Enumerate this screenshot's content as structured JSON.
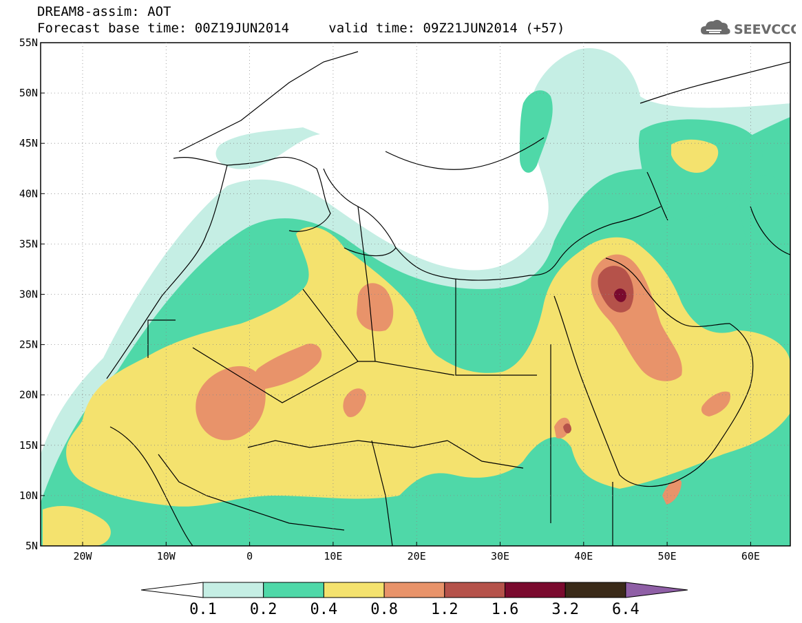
{
  "header": {
    "title_line1": "DREAM8-assim: AOT",
    "base_label": "Forecast base time: 00Z19JUN2014",
    "valid_label": "valid time: 09Z21JUN2014 (+57)"
  },
  "logo": {
    "text": "SEEVCCC",
    "icon": "cloud-icon"
  },
  "map": {
    "lat_labels": [
      "55N",
      "50N",
      "45N",
      "40N",
      "35N",
      "30N",
      "25N",
      "20N",
      "15N",
      "10N",
      "5N"
    ],
    "lon_labels": [
      "20W",
      "10W",
      "0",
      "10E",
      "20E",
      "30E",
      "40E",
      "50E",
      "60E"
    ]
  },
  "colorbar": {
    "levels": [
      "0.1",
      "0.2",
      "0.4",
      "0.8",
      "1.2",
      "1.6",
      "3.2",
      "6.4"
    ],
    "colors": [
      "#ffffff",
      "#c5eee4",
      "#4fd8a8",
      "#f4e26e",
      "#e8936a",
      "#b5524a",
      "#7a0a2e",
      "#3a2a18",
      "#8f5fa6"
    ]
  }
}
